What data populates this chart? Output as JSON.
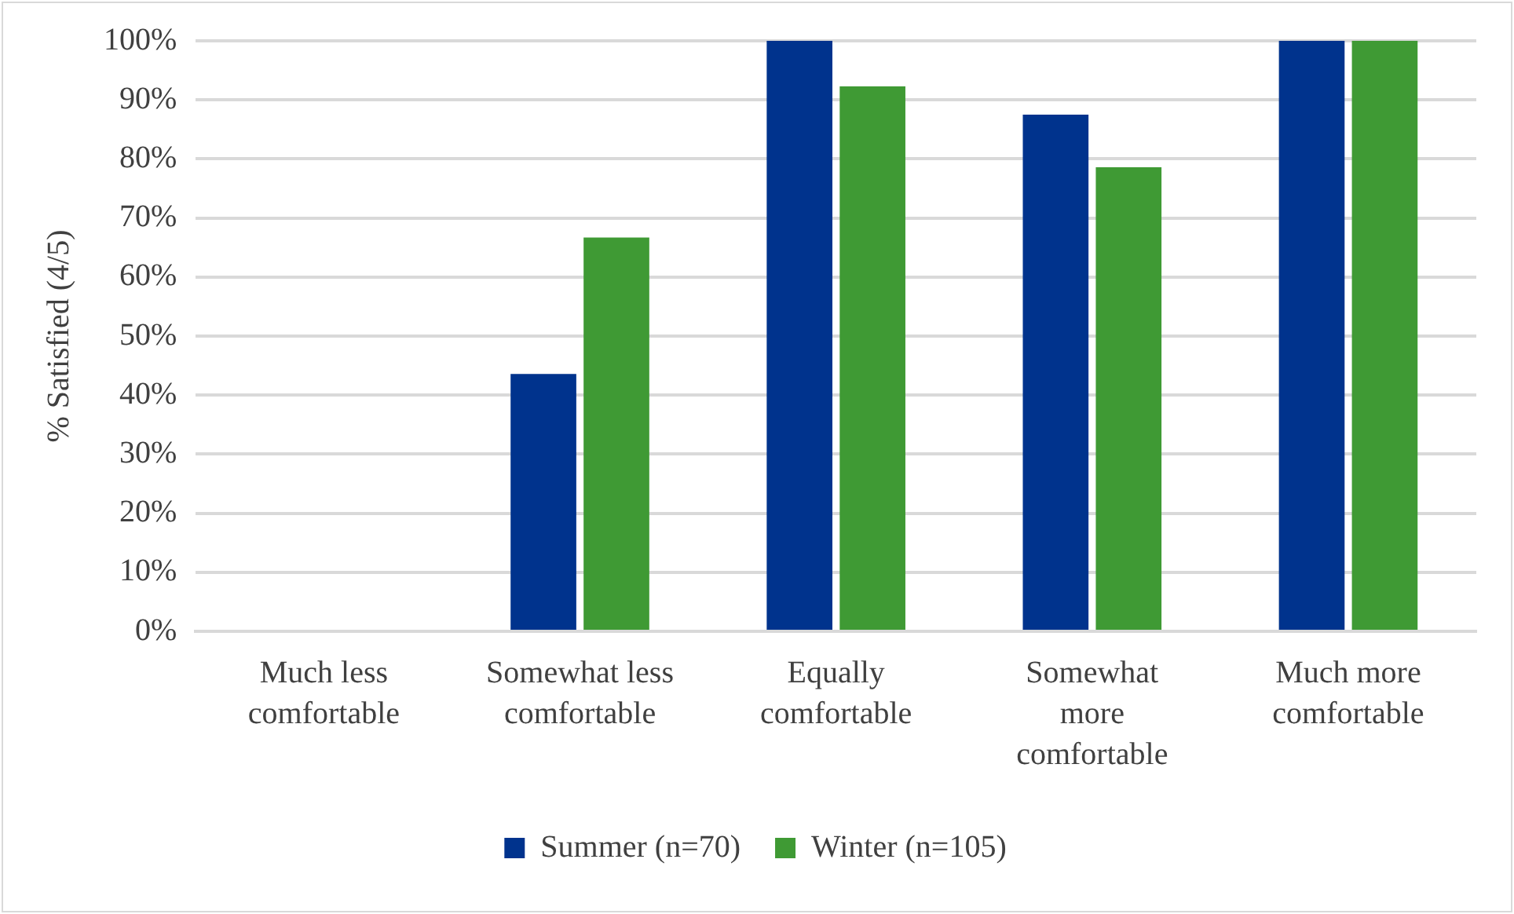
{
  "chart_data": {
    "type": "bar",
    "ylabel": "% Satisfied (4/5)",
    "categories": [
      "Much less comfortable",
      "Somewhat less comfortable",
      "Equally comfortable",
      "Somewhat more comfortable",
      "Much more comfortable"
    ],
    "series": [
      {
        "name": "Summer (n=70)",
        "color": "#00338d",
        "values": [
          0,
          43.6,
          100,
          87.5,
          100
        ]
      },
      {
        "name": "Winter (n=105)",
        "color": "#3f9a34",
        "values": [
          0,
          66.7,
          92.3,
          78.6,
          100
        ]
      }
    ],
    "ylim": [
      0,
      100
    ],
    "yticks": [
      {
        "value": 0,
        "label": "0%"
      },
      {
        "value": 10,
        "label": "10%"
      },
      {
        "value": 20,
        "label": "20%"
      },
      {
        "value": 30,
        "label": "30%"
      },
      {
        "value": 40,
        "label": "40%"
      },
      {
        "value": 50,
        "label": "50%"
      },
      {
        "value": 60,
        "label": "60%"
      },
      {
        "value": 70,
        "label": "70%"
      },
      {
        "value": 80,
        "label": "80%"
      },
      {
        "value": 90,
        "label": "90%"
      },
      {
        "value": 100,
        "label": "100%"
      }
    ],
    "grid": "y",
    "legend": "bottom"
  }
}
